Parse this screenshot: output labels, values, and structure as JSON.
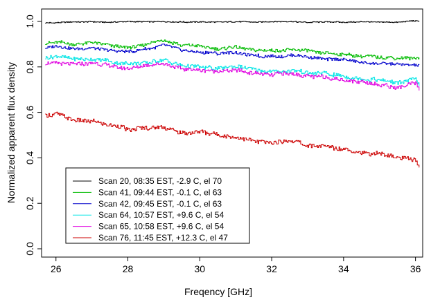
{
  "chart_data": {
    "type": "line",
    "title": "",
    "xlabel": "Freqency [GHz]",
    "ylabel": "Normalized apparent flux density",
    "xlim": [
      25.6,
      36.2
    ],
    "ylim": [
      0.0,
      1.0
    ],
    "xticks": [
      26,
      28,
      30,
      32,
      34,
      36
    ],
    "yticks": [
      0.0,
      0.2,
      0.4,
      0.6,
      0.8,
      1.0
    ],
    "xtick_labels": [
      "26",
      "28",
      "30",
      "32",
      "34",
      "36"
    ],
    "ytick_labels": [
      "0.0",
      "0.2",
      "0.4",
      "0.6",
      "0.8",
      "1.0"
    ],
    "grid": false,
    "legend_position": "bottom-left",
    "x": [
      25.7,
      26.0,
      26.5,
      27.0,
      27.5,
      28.0,
      28.5,
      29.0,
      29.5,
      30.0,
      30.5,
      31.0,
      31.5,
      32.0,
      32.5,
      33.0,
      33.5,
      34.0,
      34.5,
      35.0,
      35.5,
      36.0,
      36.1
    ],
    "series": [
      {
        "name": "Scan 20, 08:35 EST, -2.9 C, el 70",
        "color": "#000000",
        "values": [
          0.993,
          0.995,
          0.997,
          0.998,
          0.996,
          0.999,
          0.998,
          1.0,
          0.997,
          0.998,
          0.996,
          0.999,
          0.997,
          0.998,
          0.999,
          0.996,
          0.998,
          0.997,
          0.998,
          0.996,
          0.997,
          1.003,
          1.001
        ]
      },
      {
        "name": "Scan 41, 09:44 EST, -0.1 C, el 63",
        "color": "#00bb00",
        "values": [
          0.905,
          0.908,
          0.9,
          0.91,
          0.895,
          0.885,
          0.9,
          0.92,
          0.895,
          0.89,
          0.88,
          0.885,
          0.875,
          0.87,
          0.875,
          0.87,
          0.86,
          0.855,
          0.845,
          0.845,
          0.835,
          0.84,
          0.84
        ]
      },
      {
        "name": "Scan 42, 09:45 EST, -0.1 C, el 63",
        "color": "#0000cc",
        "values": [
          0.885,
          0.89,
          0.88,
          0.885,
          0.875,
          0.865,
          0.88,
          0.895,
          0.875,
          0.865,
          0.86,
          0.865,
          0.85,
          0.845,
          0.85,
          0.845,
          0.835,
          0.83,
          0.82,
          0.815,
          0.81,
          0.81,
          0.805
        ]
      },
      {
        "name": "Scan 64, 10:57 EST, +9.6 C, el 54",
        "color": "#00e5e5",
        "values": [
          0.84,
          0.845,
          0.835,
          0.835,
          0.825,
          0.815,
          0.82,
          0.83,
          0.805,
          0.8,
          0.795,
          0.8,
          0.79,
          0.78,
          0.785,
          0.775,
          0.77,
          0.76,
          0.75,
          0.74,
          0.73,
          0.75,
          0.72
        ]
      },
      {
        "name": "Scan 65, 10:58 EST, +9.6 C, el 54",
        "color": "#e000e0",
        "values": [
          0.815,
          0.82,
          0.81,
          0.82,
          0.805,
          0.79,
          0.805,
          0.815,
          0.79,
          0.785,
          0.78,
          0.785,
          0.775,
          0.765,
          0.77,
          0.76,
          0.755,
          0.745,
          0.735,
          0.72,
          0.71,
          0.73,
          0.7
        ]
      },
      {
        "name": "Scan 76, 11:45 EST, +12.3 C, el 47",
        "color": "#cc0000",
        "values": [
          0.58,
          0.595,
          0.565,
          0.56,
          0.545,
          0.525,
          0.53,
          0.535,
          0.51,
          0.515,
          0.5,
          0.49,
          0.475,
          0.465,
          0.48,
          0.455,
          0.45,
          0.44,
          0.425,
          0.415,
          0.4,
          0.395,
          0.355
        ]
      }
    ]
  }
}
